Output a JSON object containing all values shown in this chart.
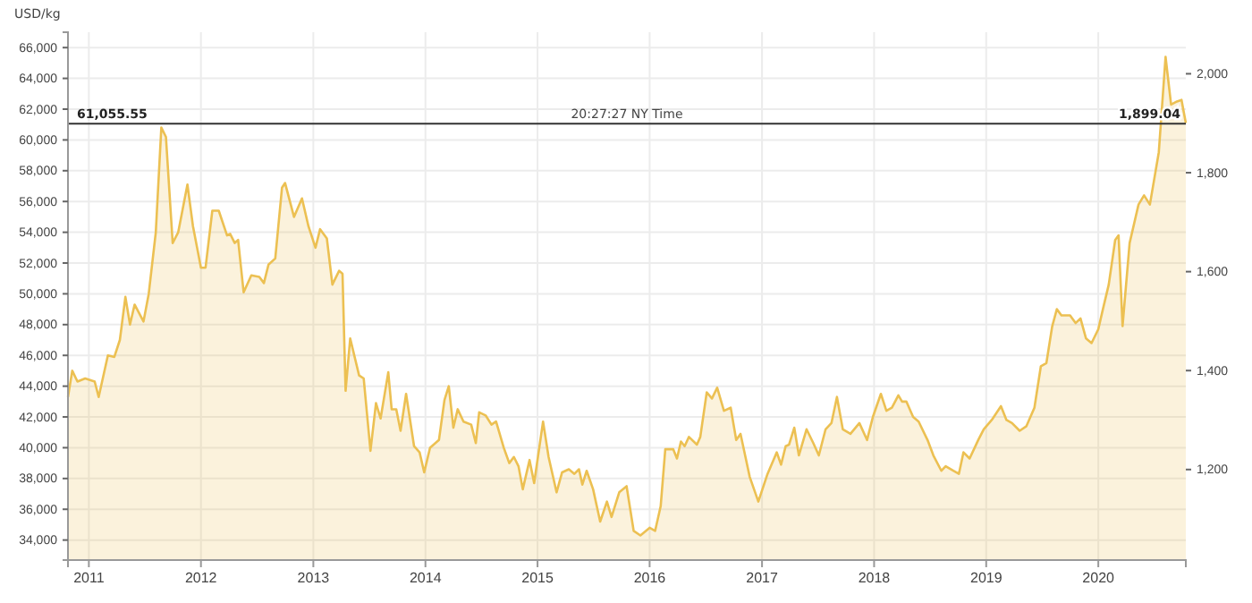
{
  "chart_data": {
    "type": "area",
    "ylabel": "USD/kg",
    "annotations": [
      "20:27:27 NY Time",
      {
        "text": "1,899.04",
        "x": "2020-10-12",
        "y": 61055.55
      }
    ],
    "xlim": [
      "2010-10-25",
      "2020-10-12"
    ],
    "xticks": [
      "2011",
      "2012",
      "2013",
      "2014",
      "2015",
      "2016",
      "2017",
      "2018",
      "2019",
      "2020"
    ],
    "ylim": [
      32700,
      67000
    ],
    "yticks": [
      {
        "value": 34000,
        "label": "34,000"
      },
      {
        "value": 36000,
        "label": "36,000"
      },
      {
        "value": 38000,
        "label": "38,000"
      },
      {
        "value": 40000,
        "label": "40,000"
      },
      {
        "value": 42000,
        "label": "42,000"
      },
      {
        "value": 44000,
        "label": "44,000"
      },
      {
        "value": 46000,
        "label": "46,000"
      },
      {
        "value": 48000,
        "label": "48,000"
      },
      {
        "value": 50000,
        "label": "50,000"
      },
      {
        "value": 52000,
        "label": "52,000"
      },
      {
        "value": 54000,
        "label": "54,000"
      },
      {
        "value": 56000,
        "label": "56,000"
      },
      {
        "value": 58000,
        "label": "58,000"
      },
      {
        "value": 60000,
        "label": "60,000"
      },
      {
        "value": 62000,
        "label": "62,000"
      },
      {
        "value": 64000,
        "label": "64,000"
      },
      {
        "value": 66000,
        "label": "66,000"
      }
    ],
    "y2lim": [
      1017,
      2084
    ],
    "y2ticks": [
      {
        "value": 1200,
        "label": "1,200"
      },
      {
        "value": 1400,
        "label": "1,400"
      },
      {
        "value": 1600,
        "label": "1,600"
      },
      {
        "value": 1800,
        "label": "1,800"
      },
      {
        "value": 2000,
        "label": "2,000"
      }
    ],
    "grid": true,
    "ref_lines": [
      {
        "axis": "y",
        "value": 61055.55,
        "label": "61,055.55",
        "color": "#333333"
      }
    ],
    "series": [
      {
        "color": "#ecc052",
        "x": [
          "2010-10-25",
          "2010-11-08",
          "2010-11-25",
          "2010-12-20",
          "2011-01-20",
          "2011-02-02",
          "2011-03-04",
          "2011-03-25",
          "2011-04-12",
          "2011-04-30",
          "2011-05-15",
          "2011-05-30",
          "2011-06-28",
          "2011-07-15",
          "2011-08-07",
          "2011-08-25",
          "2011-09-09",
          "2011-10-01",
          "2011-10-19",
          "2011-11-18",
          "2011-12-06",
          "2012-01-01",
          "2012-01-16",
          "2012-02-07",
          "2012-02-28",
          "2012-03-26",
          "2012-04-05",
          "2012-04-20",
          "2012-05-01",
          "2012-05-19",
          "2012-06-13",
          "2012-07-09",
          "2012-07-24",
          "2012-08-08",
          "2012-08-30",
          "2012-09-21",
          "2012-10-01",
          "2012-10-30",
          "2012-11-25",
          "2012-12-16",
          "2013-01-08",
          "2013-01-23",
          "2013-02-14",
          "2013-03-04",
          "2013-03-26",
          "2013-04-06",
          "2013-04-16",
          "2013-05-01",
          "2013-05-30",
          "2013-06-14",
          "2013-07-06",
          "2013-07-24",
          "2013-08-08",
          "2013-09-02",
          "2013-09-13",
          "2013-09-28",
          "2013-10-12",
          "2013-10-30",
          "2013-11-25",
          "2013-12-13",
          "2013-12-28",
          "2014-01-16",
          "2014-02-14",
          "2014-03-04",
          "2014-03-18",
          "2014-04-02",
          "2014-04-16",
          "2014-05-05",
          "2014-05-30",
          "2014-06-14",
          "2014-06-25",
          "2014-07-16",
          "2014-08-04",
          "2014-08-19",
          "2014-09-13",
          "2014-10-01",
          "2014-10-16",
          "2014-10-31",
          "2014-11-14",
          "2014-12-06",
          "2014-12-21",
          "2015-01-19",
          "2015-02-06",
          "2015-03-04",
          "2015-03-22",
          "2015-04-13",
          "2015-05-01",
          "2015-05-16",
          "2015-05-27",
          "2015-06-10",
          "2015-07-01",
          "2015-07-24",
          "2015-08-15",
          "2015-08-30",
          "2015-09-24",
          "2015-10-18",
          "2015-11-10",
          "2015-12-02",
          "2016-01-01",
          "2016-01-19",
          "2016-02-06",
          "2016-02-21",
          "2016-03-18",
          "2016-03-30",
          "2016-04-12",
          "2016-04-24",
          "2016-05-08",
          "2016-06-03",
          "2016-06-14",
          "2016-07-05",
          "2016-07-22",
          "2016-08-08",
          "2016-08-30",
          "2016-09-21",
          "2016-10-09",
          "2016-10-23",
          "2016-11-22",
          "2016-12-20",
          "2017-01-19",
          "2017-02-18",
          "2017-03-04",
          "2017-03-19",
          "2017-03-30",
          "2017-04-16",
          "2017-05-01",
          "2017-05-26",
          "2017-06-17",
          "2017-07-05",
          "2017-07-27",
          "2017-08-15",
          "2017-09-02",
          "2017-09-21",
          "2017-10-16",
          "2017-11-14",
          "2017-12-09",
          "2017-12-28",
          "2018-01-23",
          "2018-02-10",
          "2018-02-28",
          "2018-03-21",
          "2018-04-02",
          "2018-04-16",
          "2018-05-08",
          "2018-05-26",
          "2018-06-24",
          "2018-07-13",
          "2018-08-08",
          "2018-08-22",
          "2018-09-16",
          "2018-10-04",
          "2018-10-19",
          "2018-11-08",
          "2018-12-06",
          "2018-12-24",
          "2019-01-19",
          "2019-02-18",
          "2019-03-08",
          "2019-03-26",
          "2019-04-20",
          "2019-05-12",
          "2019-06-07",
          "2019-06-28",
          "2019-07-16",
          "2019-08-04",
          "2019-08-19",
          "2019-09-03",
          "2019-10-01",
          "2019-10-19",
          "2019-11-04",
          "2019-11-22",
          "2019-12-10",
          "2020-01-01",
          "2020-01-16",
          "2020-02-04",
          "2020-02-25",
          "2020-03-07",
          "2020-03-20",
          "2020-04-12",
          "2020-05-11",
          "2020-05-29",
          "2020-06-17",
          "2020-07-16",
          "2020-08-07",
          "2020-08-25",
          "2020-09-13",
          "2020-09-28",
          "2020-10-12"
        ],
        "values": [
          43300,
          45000,
          44300,
          44500,
          44300,
          43300,
          46000,
          45900,
          47000,
          49800,
          48000,
          49300,
          48200,
          50000,
          54000,
          60800,
          60200,
          53300,
          54000,
          57100,
          54400,
          51700,
          51700,
          55400,
          55400,
          53800,
          53900,
          53300,
          53500,
          50100,
          51200,
          51100,
          50700,
          51900,
          52300,
          56900,
          57200,
          55000,
          56200,
          54400,
          53000,
          54200,
          53600,
          50600,
          51500,
          51300,
          43700,
          47100,
          44700,
          44500,
          39800,
          42900,
          41900,
          44900,
          42500,
          42500,
          41100,
          43500,
          40100,
          39700,
          38400,
          40000,
          40500,
          43100,
          44000,
          41300,
          42500,
          41700,
          41500,
          40300,
          42300,
          42100,
          41500,
          41700,
          40000,
          39000,
          39400,
          38800,
          37300,
          39200,
          37700,
          41700,
          39400,
          37100,
          38400,
          38600,
          38300,
          38600,
          37600,
          38500,
          37300,
          35200,
          36500,
          35500,
          37100,
          37500,
          34600,
          34300,
          34800,
          34600,
          36200,
          39900,
          39900,
          39300,
          40400,
          40100,
          40700,
          40200,
          40700,
          43600,
          43200,
          43900,
          42400,
          42600,
          40500,
          40900,
          38100,
          36500,
          38300,
          39700,
          38900,
          40100,
          40200,
          41300,
          39500,
          41200,
          40300,
          39500,
          41200,
          41600,
          43300,
          41200,
          40900,
          41600,
          40500,
          42000,
          43500,
          42400,
          42600,
          43400,
          43000,
          43000,
          42000,
          41700,
          40500,
          39500,
          38500,
          38800,
          38500,
          38300,
          39700,
          39300,
          40500,
          41200,
          41800,
          42700,
          41800,
          41600,
          41100,
          41400,
          42600,
          45300,
          45500,
          47900,
          49000,
          48600,
          48600,
          48100,
          48400,
          47100,
          46800,
          47700,
          49000,
          50600,
          53500,
          53800,
          47900,
          53300,
          55800,
          56400,
          55800,
          59200,
          65400,
          62300,
          62500,
          62600,
          61100
        ]
      }
    ]
  }
}
